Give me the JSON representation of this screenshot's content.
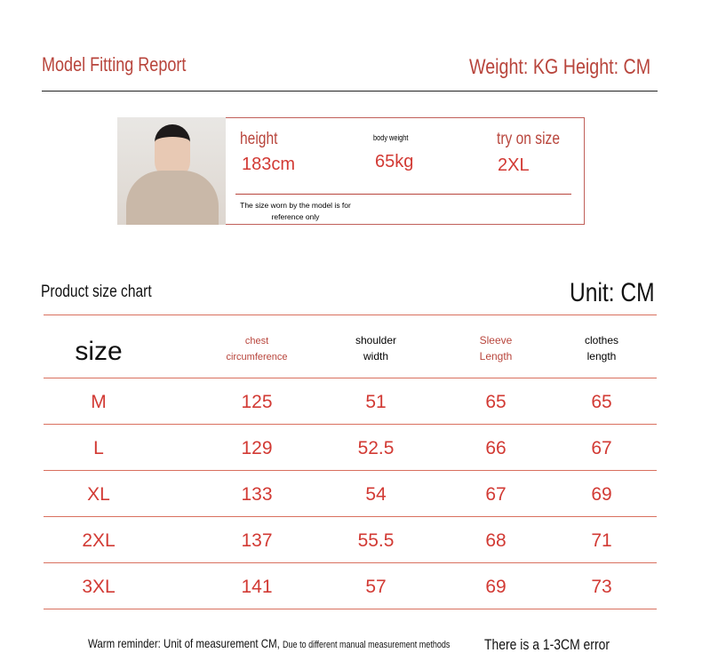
{
  "header": {
    "title": "Model Fitting Report",
    "units": "Weight: KG Height: CM"
  },
  "model": {
    "height_label": "height",
    "height_value": "183cm",
    "weight_label": "body weight",
    "weight_value": "65kg",
    "size_label": "try on size",
    "size_value": "2XL",
    "note": "The size worn by the model is for reference only"
  },
  "chart": {
    "title": "Product size chart",
    "unit": "Unit: CM"
  },
  "table": {
    "headers": [
      "size",
      "chest circumference",
      "shoulder width",
      "Sleeve Length",
      "clothes length"
    ],
    "rows": [
      [
        "M",
        "125",
        "51",
        "65",
        "65"
      ],
      [
        "L",
        "129",
        "52.5",
        "66",
        "67"
      ],
      [
        "XL",
        "133",
        "54",
        "67",
        "69"
      ],
      [
        "2XL",
        "137",
        "55.5",
        "68",
        "71"
      ],
      [
        "3XL",
        "141",
        "57",
        "69",
        "73"
      ]
    ]
  },
  "footer": {
    "reminder": "Warm reminder: Unit of measurement CM,",
    "small": "Due to different manual measurement methods",
    "error": "There is a 1-3CM error"
  },
  "colors": {
    "accent": "#b8453c",
    "value": "#d23a34",
    "line": "#d9705f"
  }
}
